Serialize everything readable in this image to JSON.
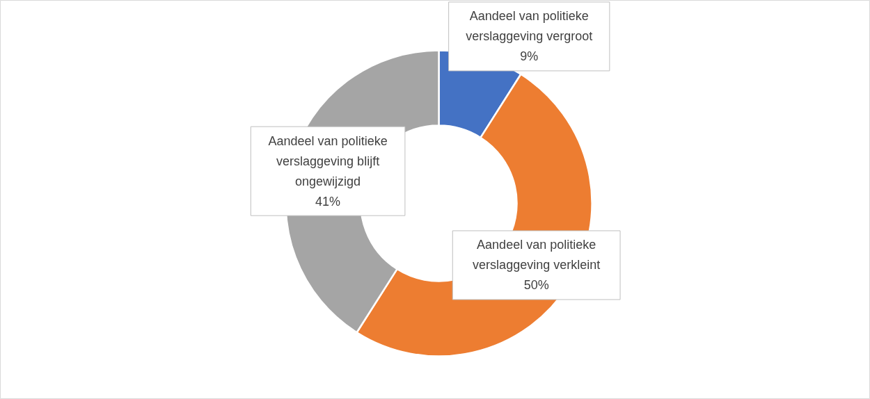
{
  "chart_data": {
    "type": "donut",
    "categories": [
      "Aandeel van politieke verslaggeving vergroot",
      "Aandeel van politieke verslaggeving verkleint",
      "Aandeel van politieke verslaggeving blijft ongewijzigd"
    ],
    "values": [
      9,
      50,
      41
    ],
    "colors": [
      "#4472c4",
      "#ed7d31",
      "#a5a5a5"
    ],
    "value_labels": [
      "9%",
      "50%",
      "41%"
    ]
  }
}
